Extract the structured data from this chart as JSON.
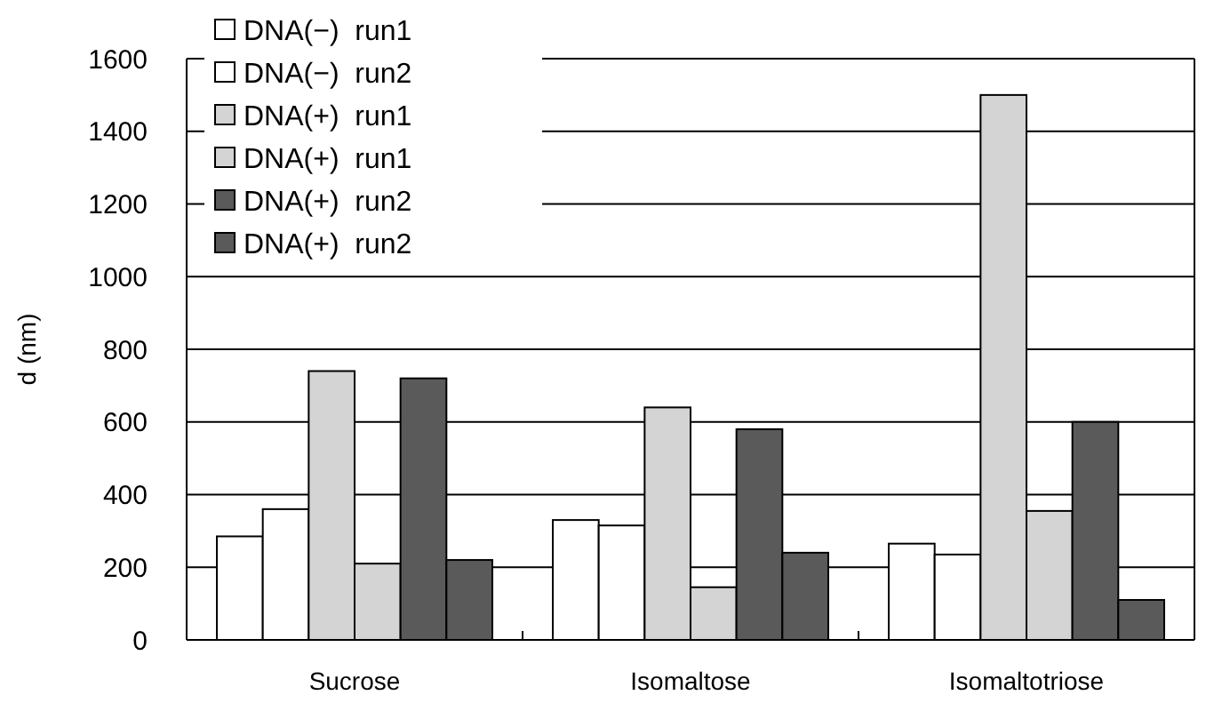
{
  "chart_data": {
    "type": "bar",
    "ylabel": "d (nm)",
    "categories": [
      "Sucrose",
      "Isomaltose",
      "Isomaltotriose"
    ],
    "series": [
      {
        "name": "DNA(−)  run1",
        "color": "#ffffff",
        "values": [
          285,
          330,
          265
        ]
      },
      {
        "name": "DNA(−)  run2",
        "color": "#ffffff",
        "values": [
          360,
          315,
          235
        ]
      },
      {
        "name": "DNA(+)  run1",
        "color": "#d4d4d4",
        "values": [
          740,
          640,
          1500
        ]
      },
      {
        "name": "DNA(+)  run1",
        "color": "#d4d4d4",
        "values": [
          210,
          145,
          355
        ]
      },
      {
        "name": "DNA(+)  run2",
        "color": "#5a5a5a",
        "values": [
          720,
          580,
          600
        ]
      },
      {
        "name": "DNA(+)  run2",
        "color": "#5a5a5a",
        "values": [
          220,
          240,
          110
        ]
      }
    ],
    "ylim": [
      0,
      1600
    ],
    "yticks": [
      0,
      200,
      400,
      600,
      800,
      1000,
      1200,
      1400,
      1600
    ],
    "grid": "y",
    "legend": "top left"
  }
}
